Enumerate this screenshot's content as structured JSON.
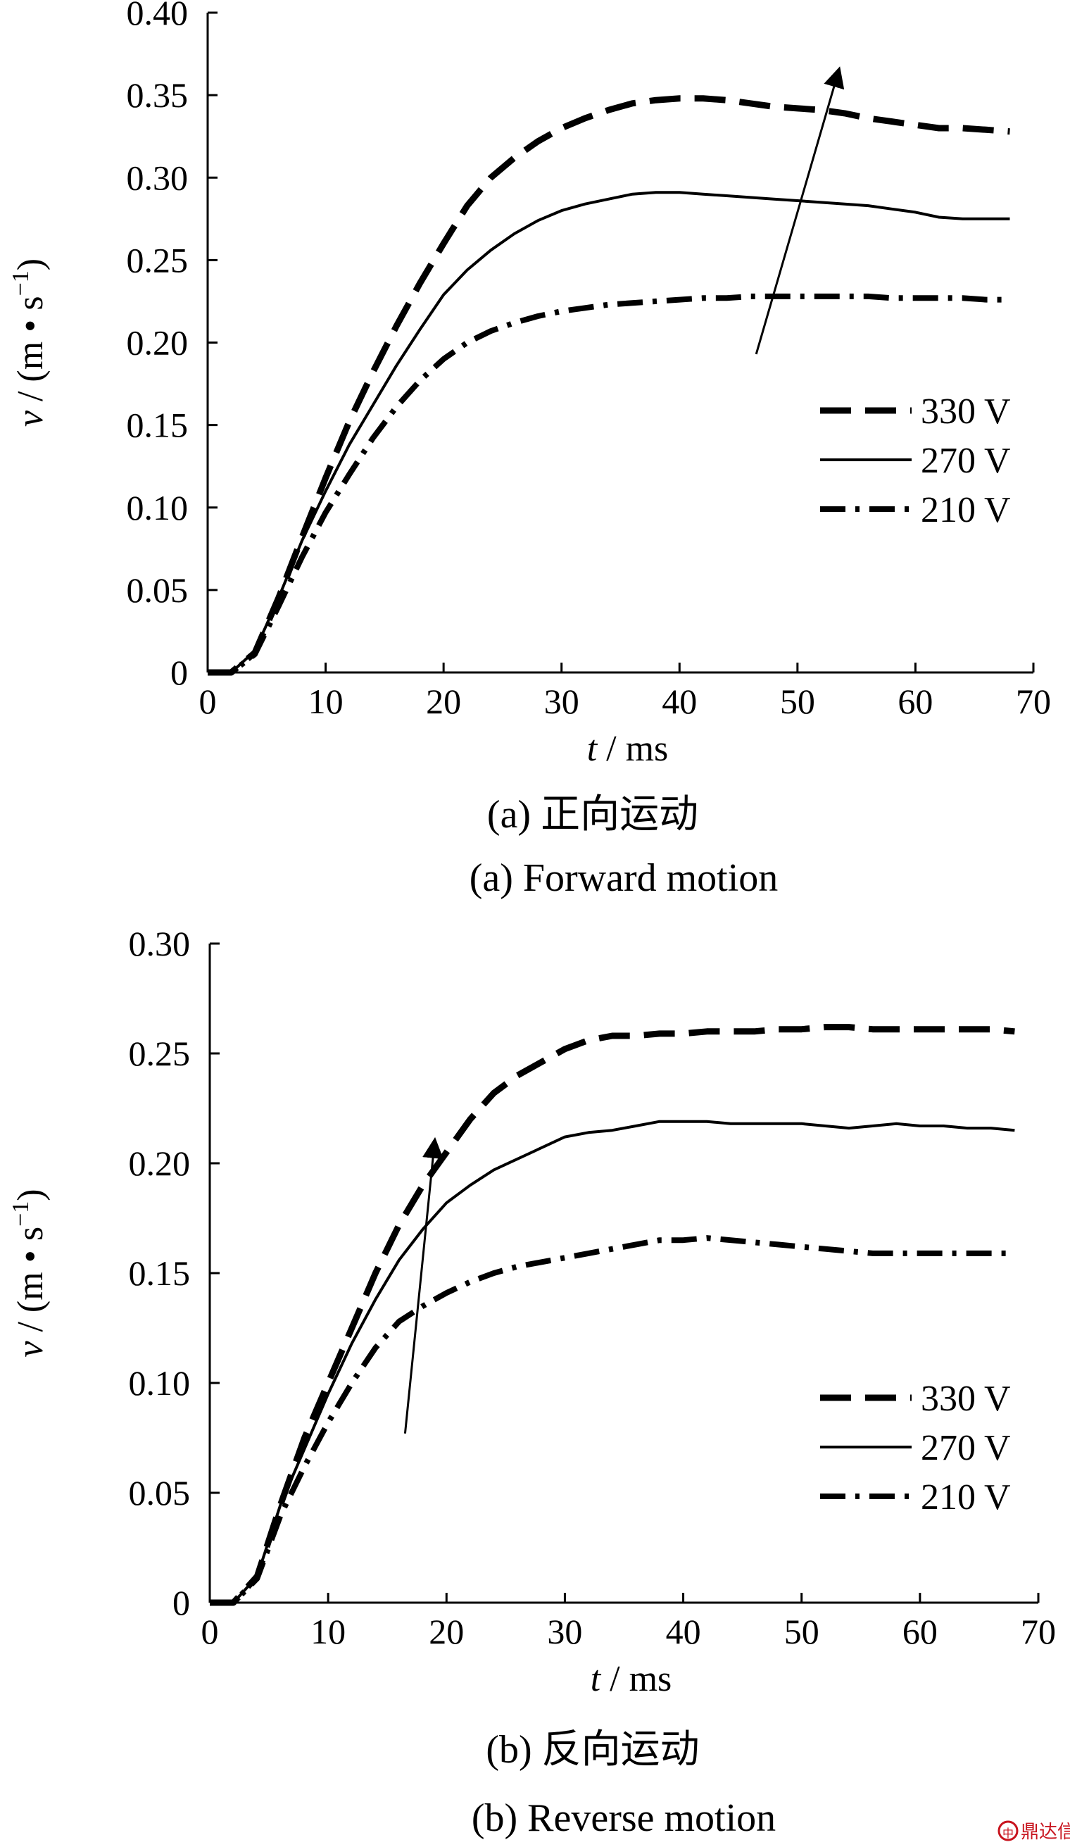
{
  "chart_data": [
    {
      "type": "line",
      "panel": "a",
      "caption_cn": "(a) 正向运动",
      "caption_en": "(a) Forward motion",
      "xlabel_var": "t",
      "xlabel_unit": " / ms",
      "ylabel_var": "v",
      "ylabel_unit": " / (m • s",
      "ylabel_exp": "−1",
      "ylabel_close": ")",
      "xlim": [
        0,
        70
      ],
      "ylim": [
        0,
        0.4
      ],
      "xticks": [
        0,
        10,
        20,
        30,
        40,
        50,
        60,
        70
      ],
      "xtick_labels": [
        "0",
        "10",
        "20",
        "30",
        "40",
        "50",
        "60",
        "70"
      ],
      "yticks": [
        0,
        0.05,
        0.1,
        0.15,
        0.2,
        0.25,
        0.3,
        0.35,
        0.4
      ],
      "ytick_labels": [
        "0",
        "0.05",
        "0.10",
        "0.15",
        "0.20",
        "0.25",
        "0.30",
        "0.35",
        "0.40"
      ],
      "grid": false,
      "legend_position": "right",
      "arrow": {
        "from": [
          46.5,
          0.193
        ],
        "to": [
          53.5,
          0.365
        ]
      },
      "series": [
        {
          "name": "330 V",
          "style": "dashed",
          "x": [
            0,
            2,
            4,
            6,
            8,
            10,
            12,
            14,
            16,
            18,
            20,
            22,
            24,
            26,
            28,
            30,
            32,
            34,
            36,
            38,
            40,
            42,
            44,
            46,
            48,
            50,
            52,
            54,
            56,
            58,
            60,
            62,
            64,
            66,
            68
          ],
          "y": [
            0,
            0,
            0.012,
            0.045,
            0.082,
            0.118,
            0.152,
            0.182,
            0.21,
            0.236,
            0.26,
            0.283,
            0.3,
            0.312,
            0.322,
            0.33,
            0.336,
            0.341,
            0.345,
            0.347,
            0.348,
            0.348,
            0.347,
            0.345,
            0.343,
            0.342,
            0.341,
            0.339,
            0.336,
            0.334,
            0.332,
            0.33,
            0.33,
            0.329,
            0.328
          ]
        },
        {
          "name": "270 V",
          "style": "solid",
          "x": [
            0,
            2,
            4,
            6,
            8,
            10,
            12,
            14,
            16,
            18,
            20,
            22,
            24,
            26,
            28,
            30,
            32,
            34,
            36,
            38,
            40,
            42,
            44,
            46,
            48,
            50,
            52,
            54,
            56,
            58,
            60,
            62,
            64,
            66,
            68
          ],
          "y": [
            0,
            0,
            0.013,
            0.045,
            0.08,
            0.11,
            0.138,
            0.162,
            0.186,
            0.208,
            0.229,
            0.244,
            0.256,
            0.266,
            0.274,
            0.28,
            0.284,
            0.287,
            0.29,
            0.291,
            0.291,
            0.29,
            0.289,
            0.288,
            0.287,
            0.286,
            0.285,
            0.284,
            0.283,
            0.281,
            0.279,
            0.276,
            0.275,
            0.275,
            0.275
          ]
        },
        {
          "name": "210 V",
          "style": "dashdot",
          "x": [
            0,
            2,
            4,
            6,
            8,
            10,
            12,
            14,
            16,
            18,
            20,
            22,
            24,
            26,
            28,
            30,
            32,
            34,
            36,
            38,
            40,
            42,
            44,
            46,
            48,
            50,
            52,
            54,
            56,
            58,
            60,
            62,
            64,
            66,
            68
          ],
          "y": [
            0,
            0,
            0.011,
            0.04,
            0.07,
            0.097,
            0.12,
            0.142,
            0.161,
            0.177,
            0.19,
            0.2,
            0.207,
            0.212,
            0.216,
            0.219,
            0.221,
            0.223,
            0.224,
            0.225,
            0.226,
            0.227,
            0.227,
            0.228,
            0.228,
            0.228,
            0.228,
            0.228,
            0.228,
            0.227,
            0.227,
            0.227,
            0.227,
            0.226,
            0.226
          ]
        }
      ]
    },
    {
      "type": "line",
      "panel": "b",
      "caption_cn": "(b) 反向运动",
      "caption_en": "(b) Reverse motion",
      "xlabel_var": "t",
      "xlabel_unit": " / ms",
      "ylabel_var": "v",
      "ylabel_unit": " / (m • s",
      "ylabel_exp": "−1",
      "ylabel_close": ")",
      "xlim": [
        0,
        70
      ],
      "ylim": [
        0,
        0.3
      ],
      "xticks": [
        0,
        10,
        20,
        30,
        40,
        50,
        60,
        70
      ],
      "xtick_labels": [
        "0",
        "10",
        "20",
        "30",
        "40",
        "50",
        "60",
        "70"
      ],
      "yticks": [
        0,
        0.05,
        0.1,
        0.15,
        0.2,
        0.25,
        0.3
      ],
      "ytick_labels": [
        "0",
        "0.05",
        "0.10",
        "0.15",
        "0.20",
        "0.25",
        "0.30"
      ],
      "grid": false,
      "legend_position": "right",
      "arrow": {
        "from": [
          16.5,
          0.077
        ],
        "to": [
          19,
          0.21
        ]
      },
      "series": [
        {
          "name": "330 V",
          "style": "dashed",
          "x": [
            0,
            2,
            4,
            6,
            8,
            10,
            12,
            14,
            16,
            18,
            20,
            22,
            24,
            26,
            28,
            30,
            32,
            34,
            36,
            38,
            40,
            42,
            44,
            46,
            48,
            50,
            52,
            54,
            56,
            58,
            60,
            62,
            64,
            66,
            68
          ],
          "y": [
            0,
            0,
            0.012,
            0.045,
            0.075,
            0.1,
            0.125,
            0.15,
            0.172,
            0.19,
            0.205,
            0.22,
            0.232,
            0.24,
            0.246,
            0.252,
            0.256,
            0.258,
            0.258,
            0.259,
            0.259,
            0.26,
            0.26,
            0.26,
            0.261,
            0.261,
            0.262,
            0.262,
            0.261,
            0.261,
            0.261,
            0.261,
            0.261,
            0.261,
            0.26
          ]
        },
        {
          "name": "270 V",
          "style": "solid",
          "x": [
            0,
            2,
            4,
            6,
            8,
            10,
            12,
            14,
            16,
            18,
            20,
            22,
            24,
            26,
            28,
            30,
            32,
            34,
            36,
            38,
            40,
            42,
            44,
            46,
            48,
            50,
            52,
            54,
            56,
            58,
            60,
            62,
            64,
            66,
            68
          ],
          "y": [
            0,
            0,
            0.012,
            0.045,
            0.07,
            0.095,
            0.118,
            0.138,
            0.156,
            0.17,
            0.182,
            0.19,
            0.197,
            0.202,
            0.207,
            0.212,
            0.214,
            0.215,
            0.217,
            0.219,
            0.219,
            0.219,
            0.218,
            0.218,
            0.218,
            0.218,
            0.217,
            0.216,
            0.217,
            0.218,
            0.217,
            0.217,
            0.216,
            0.216,
            0.215
          ]
        },
        {
          "name": "210 V",
          "style": "dashdot",
          "x": [
            0,
            2,
            4,
            6,
            8,
            10,
            12,
            14,
            16,
            18,
            20,
            22,
            24,
            26,
            28,
            30,
            32,
            34,
            36,
            38,
            40,
            42,
            44,
            46,
            48,
            50,
            52,
            54,
            56,
            58,
            60,
            62,
            64,
            66,
            68
          ],
          "y": [
            0,
            0,
            0.011,
            0.04,
            0.062,
            0.082,
            0.1,
            0.116,
            0.128,
            0.135,
            0.141,
            0.146,
            0.15,
            0.153,
            0.155,
            0.157,
            0.159,
            0.161,
            0.163,
            0.165,
            0.165,
            0.166,
            0.165,
            0.164,
            0.163,
            0.162,
            0.161,
            0.16,
            0.159,
            0.159,
            0.159,
            0.159,
            0.159,
            0.159,
            0.159
          ]
        }
      ]
    }
  ],
  "watermark": {
    "badge": "中",
    "text": "鼎达信"
  }
}
